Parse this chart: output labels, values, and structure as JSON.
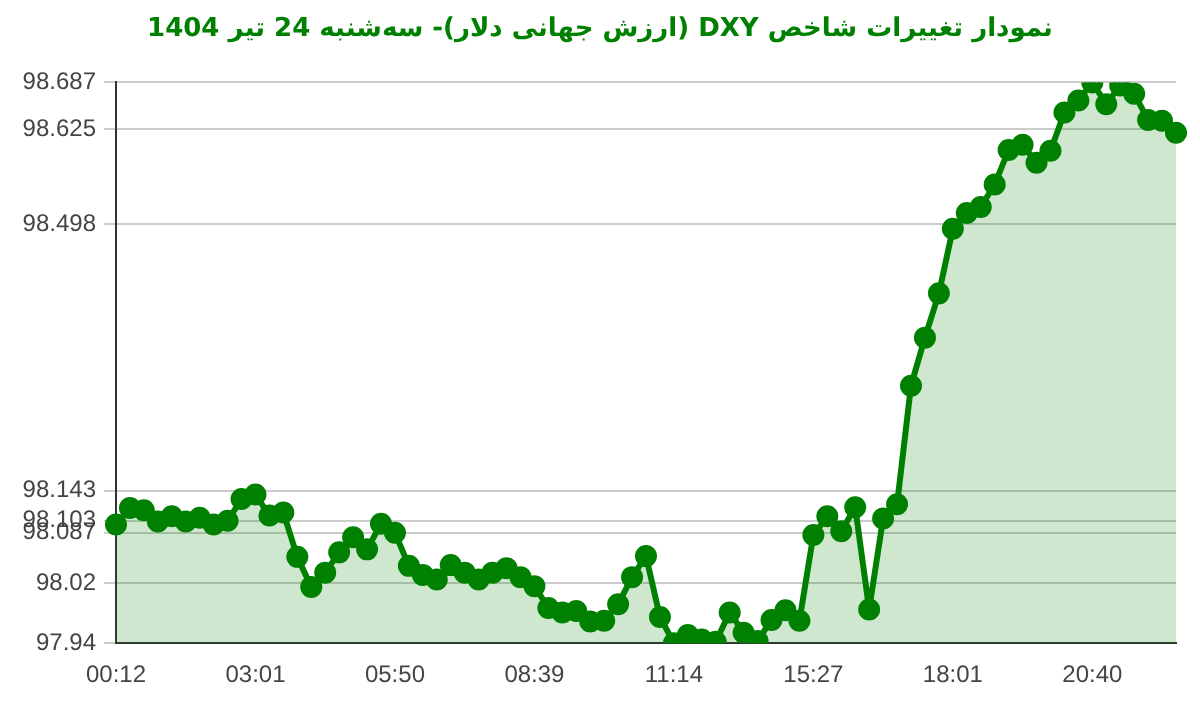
{
  "chart_data": {
    "type": "area",
    "title": "نمودار تغییرات شاخص DXY (ارزش جهانی دلار)- سه‌شنبه  24 تیر 1404",
    "categories": [
      "00:12",
      null,
      null,
      null,
      null,
      null,
      null,
      null,
      null,
      null,
      "03:01",
      null,
      null,
      null,
      null,
      null,
      null,
      null,
      null,
      null,
      "05:50",
      null,
      null,
      null,
      null,
      null,
      null,
      null,
      null,
      null,
      "08:39",
      null,
      null,
      null,
      null,
      null,
      null,
      null,
      null,
      null,
      "11:14",
      null,
      null,
      null,
      null,
      null,
      null,
      null,
      null,
      null,
      "15:27",
      null,
      null,
      null,
      null,
      null,
      null,
      null,
      null,
      null,
      "18:01",
      null,
      null,
      null,
      null,
      null,
      null,
      null,
      null,
      null,
      "20:40",
      null,
      null,
      null,
      null,
      null,
      null
    ],
    "series": [
      {
        "color": "#008000",
        "values": [
          98.098,
          98.12,
          98.117,
          98.102,
          98.109,
          98.102,
          98.107,
          98.098,
          98.103,
          98.132,
          98.138,
          98.11,
          98.114,
          98.055,
          98.015,
          98.034,
          98.061,
          98.081,
          98.065,
          98.099,
          98.087,
          98.043,
          98.031,
          98.025,
          98.044,
          98.034,
          98.025,
          98.034,
          98.04,
          98.028,
          98.016,
          97.987,
          97.981,
          97.983,
          97.969,
          97.97,
          97.992,
          98.028,
          98.056,
          97.975,
          97.94,
          97.951,
          97.945,
          97.942,
          97.981,
          97.954,
          97.943,
          97.971,
          97.984,
          97.97,
          98.084,
          98.109,
          98.089,
          98.121,
          97.985,
          98.106,
          98.125,
          98.283,
          98.347,
          98.406,
          98.492,
          98.513,
          98.521,
          98.551,
          98.597,
          98.604,
          98.58,
          98.596,
          98.647,
          98.663,
          98.687,
          98.658,
          98.683,
          98.672,
          98.637,
          98.636,
          98.62
        ]
      }
    ],
    "ylim": [
      97.94,
      98.687
    ],
    "yticks": [
      97.94,
      98.02,
      98.087,
      98.103,
      98.143,
      98.498,
      98.625,
      98.687
    ],
    "grid": "y",
    "legend": false,
    "marker": "circle",
    "line_style": "solid"
  }
}
